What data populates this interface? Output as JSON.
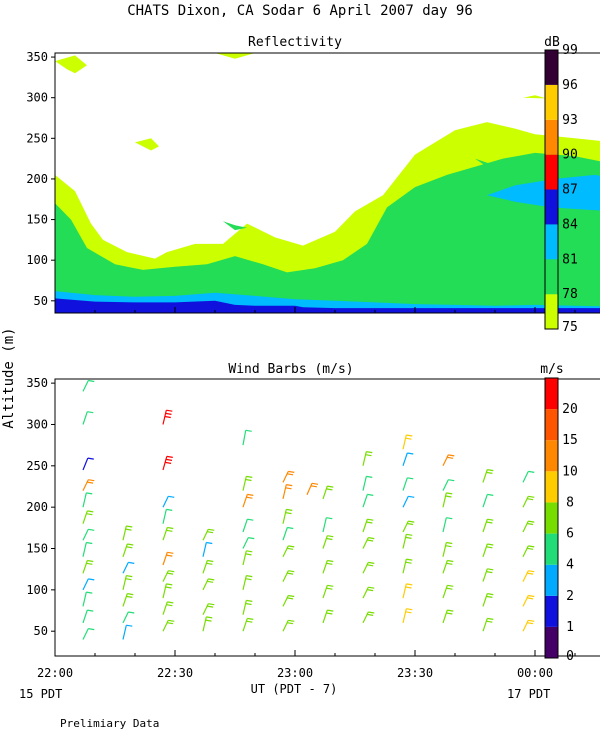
{
  "title": "CHATS Dixon, CA  Sodar    6 April 2007   day  96",
  "footnote": "Prelimiary Data",
  "y_axis_label": "Altitude (m)",
  "x_axis": {
    "label": "UT  (PDT - 7)",
    "ticks": [
      "22:00",
      "22:30",
      "23:00",
      "23:30",
      "00:00"
    ],
    "left_date": "15 PDT",
    "right_date": "17 PDT"
  },
  "colors": {
    "refl": [
      "#ccff00",
      "#22dd55",
      "#00bbff",
      "#1111dd",
      "#ff0000",
      "#ff8800",
      "#ffcc00",
      "#330033"
    ],
    "wind": [
      "#440066",
      "#1111dd",
      "#00aaff",
      "#22dd77",
      "#77dd00",
      "#ffcc00",
      "#ff8800",
      "#ff5500",
      "#ff0000"
    ]
  },
  "chart_data": [
    {
      "type": "heatmap",
      "title": "Reflectivity",
      "unit_label": "dB",
      "x_range": [
        "22:00",
        "00:20"
      ],
      "ylim": [
        35,
        355
      ],
      "y_ticks": [
        50,
        100,
        150,
        200,
        250,
        300,
        350
      ],
      "colorbar_ticks": [
        75,
        78,
        81,
        84,
        87,
        90,
        93,
        96,
        99
      ],
      "bands": [
        {
          "level": 0,
          "boundary": [
            [
              0,
              205
            ],
            [
              5,
              185
            ],
            [
              9,
              145
            ],
            [
              12,
              125
            ],
            [
              18,
              110
            ],
            [
              25,
              102
            ],
            [
              28,
              110
            ],
            [
              35,
              120
            ],
            [
              42,
              120
            ],
            [
              48,
              145
            ],
            [
              55,
              128
            ],
            [
              62,
              118
            ],
            [
              70,
              135
            ],
            [
              75,
              160
            ],
            [
              82,
              180
            ],
            [
              90,
              230
            ],
            [
              100,
              260
            ],
            [
              108,
              270
            ],
            [
              115,
              262
            ],
            [
              120,
              255
            ],
            [
              130,
              250
            ],
            [
              140,
              245
            ]
          ]
        },
        {
          "level": 1,
          "boundary": [
            [
              0,
              170
            ],
            [
              4,
              150
            ],
            [
              8,
              115
            ],
            [
              15,
              95
            ],
            [
              22,
              88
            ],
            [
              30,
              92
            ],
            [
              38,
              95
            ],
            [
              45,
              105
            ],
            [
              52,
              95
            ],
            [
              58,
              85
            ],
            [
              65,
              90
            ],
            [
              72,
              100
            ],
            [
              78,
              120
            ],
            [
              83,
              165
            ],
            [
              90,
              190
            ],
            [
              98,
              205
            ],
            [
              105,
              215
            ],
            [
              112,
              225
            ],
            [
              120,
              232
            ],
            [
              130,
              228
            ],
            [
              140,
              218
            ]
          ]
        },
        {
          "level": 2,
          "boundary": [
            [
              0,
              62
            ],
            [
              10,
              57
            ],
            [
              20,
              55
            ],
            [
              30,
              56
            ],
            [
              40,
              60
            ],
            [
              50,
              56
            ],
            [
              60,
              52
            ],
            [
              70,
              50
            ],
            [
              80,
              48
            ],
            [
              90,
              46
            ],
            [
              100,
              45
            ],
            [
              110,
              44
            ],
            [
              120,
              45
            ],
            [
              130,
              44
            ],
            [
              140,
              43
            ]
          ]
        },
        {
          "level": 3,
          "boundary": [
            [
              0,
              53
            ],
            [
              10,
              49
            ],
            [
              20,
              48
            ],
            [
              30,
              48
            ],
            [
              40,
              50
            ],
            [
              45,
              45
            ],
            [
              50,
              44
            ],
            [
              60,
              44
            ],
            [
              62,
              42
            ],
            [
              70,
              41
            ],
            [
              80,
              41
            ],
            [
              90,
              41
            ],
            [
              100,
              41
            ],
            [
              110,
              41
            ],
            [
              120,
              41
            ],
            [
              130,
              41
            ],
            [
              140,
              41
            ]
          ]
        }
      ],
      "islands": [
        {
          "level": 2,
          "points": [
            [
              108,
              180
            ],
            [
              115,
              192
            ],
            [
              125,
              200
            ],
            [
              135,
              205
            ],
            [
              140,
              200
            ],
            [
              140,
              160
            ],
            [
              133,
              162
            ],
            [
              124,
              165
            ],
            [
              115,
              172
            ]
          ]
        },
        {
          "level": 3,
          "points": [
            [
              137,
              185
            ],
            [
              140,
              190
            ],
            [
              140,
              163
            ],
            [
              137,
              165
            ]
          ]
        },
        {
          "level": 1,
          "points": [
            [
              42,
              148
            ],
            [
              45,
              143
            ],
            [
              48,
              140
            ],
            [
              45,
              137
            ]
          ]
        },
        {
          "level": 1,
          "points": [
            [
              105,
              225
            ],
            [
              108,
              220
            ],
            [
              110,
              218
            ],
            [
              108,
              215
            ]
          ]
        },
        {
          "level": 0,
          "points": [
            [
              0,
              345
            ],
            [
              3,
              335
            ],
            [
              5,
              330
            ],
            [
              8,
              340
            ],
            [
              5,
              352
            ]
          ]
        },
        {
          "level": 0,
          "points": [
            [
              40,
              355
            ],
            [
              45,
              348
            ],
            [
              50,
              355
            ]
          ]
        },
        {
          "level": 0,
          "points": [
            [
              20,
              245
            ],
            [
              24,
              250
            ],
            [
              26,
              240
            ],
            [
              24,
              235
            ]
          ]
        },
        {
          "level": 0,
          "points": [
            [
              117,
              300
            ],
            [
              120,
              303
            ],
            [
              123,
              299
            ]
          ]
        }
      ]
    },
    {
      "type": "scatter",
      "title": "Wind Barbs (m/s)",
      "unit_label": "m/s",
      "x_range": [
        "22:00",
        "00:20"
      ],
      "ylim": [
        20,
        355
      ],
      "y_ticks": [
        50,
        100,
        150,
        200,
        250,
        300,
        350
      ],
      "colorbar_ticks": [
        0,
        1,
        2,
        4,
        6,
        8,
        10,
        15,
        20
      ],
      "barbs": [
        {
          "t": 7,
          "alt": 340,
          "lvl": 3
        },
        {
          "t": 7,
          "alt": 300,
          "lvl": 3
        },
        {
          "t": 7,
          "alt": 245,
          "lvl": 1
        },
        {
          "t": 7,
          "alt": 220,
          "lvl": 6
        },
        {
          "t": 7,
          "alt": 200,
          "lvl": 3
        },
        {
          "t": 7,
          "alt": 180,
          "lvl": 4
        },
        {
          "t": 7,
          "alt": 160,
          "lvl": 3
        },
        {
          "t": 7,
          "alt": 140,
          "lvl": 3
        },
        {
          "t": 7,
          "alt": 120,
          "lvl": 4
        },
        {
          "t": 7,
          "alt": 100,
          "lvl": 2
        },
        {
          "t": 7,
          "alt": 80,
          "lvl": 3
        },
        {
          "t": 7,
          "alt": 60,
          "lvl": 3
        },
        {
          "t": 7,
          "alt": 40,
          "lvl": 3
        },
        {
          "t": 17,
          "alt": 160,
          "lvl": 4
        },
        {
          "t": 17,
          "alt": 140,
          "lvl": 4
        },
        {
          "t": 17,
          "alt": 120,
          "lvl": 2
        },
        {
          "t": 17,
          "alt": 100,
          "lvl": 4
        },
        {
          "t": 17,
          "alt": 80,
          "lvl": 4
        },
        {
          "t": 17,
          "alt": 60,
          "lvl": 3
        },
        {
          "t": 17,
          "alt": 40,
          "lvl": 2
        },
        {
          "t": 27,
          "alt": 300,
          "lvl": 8
        },
        {
          "t": 27,
          "alt": 245,
          "lvl": 8
        },
        {
          "t": 27,
          "alt": 200,
          "lvl": 2
        },
        {
          "t": 27,
          "alt": 180,
          "lvl": 3
        },
        {
          "t": 27,
          "alt": 160,
          "lvl": 4
        },
        {
          "t": 27,
          "alt": 130,
          "lvl": 6
        },
        {
          "t": 27,
          "alt": 110,
          "lvl": 4
        },
        {
          "t": 27,
          "alt": 90,
          "lvl": 4
        },
        {
          "t": 27,
          "alt": 70,
          "lvl": 4
        },
        {
          "t": 27,
          "alt": 50,
          "lvl": 4
        },
        {
          "t": 37,
          "alt": 160,
          "lvl": 4
        },
        {
          "t": 37,
          "alt": 140,
          "lvl": 2
        },
        {
          "t": 37,
          "alt": 120,
          "lvl": 4
        },
        {
          "t": 37,
          "alt": 100,
          "lvl": 4
        },
        {
          "t": 37,
          "alt": 70,
          "lvl": 4
        },
        {
          "t": 37,
          "alt": 50,
          "lvl": 4
        },
        {
          "t": 47,
          "alt": 275,
          "lvl": 3
        },
        {
          "t": 47,
          "alt": 220,
          "lvl": 4
        },
        {
          "t": 47,
          "alt": 200,
          "lvl": 6
        },
        {
          "t": 47,
          "alt": 170,
          "lvl": 3
        },
        {
          "t": 47,
          "alt": 150,
          "lvl": 3
        },
        {
          "t": 47,
          "alt": 130,
          "lvl": 4
        },
        {
          "t": 47,
          "alt": 100,
          "lvl": 4
        },
        {
          "t": 47,
          "alt": 70,
          "lvl": 4
        },
        {
          "t": 47,
          "alt": 50,
          "lvl": 4
        },
        {
          "t": 57,
          "alt": 230,
          "lvl": 6
        },
        {
          "t": 57,
          "alt": 210,
          "lvl": 6
        },
        {
          "t": 57,
          "alt": 180,
          "lvl": 4
        },
        {
          "t": 57,
          "alt": 160,
          "lvl": 3
        },
        {
          "t": 57,
          "alt": 140,
          "lvl": 4
        },
        {
          "t": 57,
          "alt": 110,
          "lvl": 4
        },
        {
          "t": 57,
          "alt": 80,
          "lvl": 4
        },
        {
          "t": 57,
          "alt": 50,
          "lvl": 4
        },
        {
          "t": 63,
          "alt": 215,
          "lvl": 6
        },
        {
          "t": 67,
          "alt": 210,
          "lvl": 4
        },
        {
          "t": 67,
          "alt": 170,
          "lvl": 3
        },
        {
          "t": 67,
          "alt": 150,
          "lvl": 4
        },
        {
          "t": 67,
          "alt": 120,
          "lvl": 4
        },
        {
          "t": 67,
          "alt": 90,
          "lvl": 4
        },
        {
          "t": 67,
          "alt": 60,
          "lvl": 4
        },
        {
          "t": 77,
          "alt": 250,
          "lvl": 4
        },
        {
          "t": 77,
          "alt": 220,
          "lvl": 3
        },
        {
          "t": 77,
          "alt": 200,
          "lvl": 3
        },
        {
          "t": 77,
          "alt": 170,
          "lvl": 4
        },
        {
          "t": 77,
          "alt": 150,
          "lvl": 4
        },
        {
          "t": 77,
          "alt": 120,
          "lvl": 4
        },
        {
          "t": 77,
          "alt": 90,
          "lvl": 4
        },
        {
          "t": 77,
          "alt": 60,
          "lvl": 4
        },
        {
          "t": 87,
          "alt": 270,
          "lvl": 5
        },
        {
          "t": 87,
          "alt": 250,
          "lvl": 2
        },
        {
          "t": 87,
          "alt": 220,
          "lvl": 3
        },
        {
          "t": 87,
          "alt": 200,
          "lvl": 2
        },
        {
          "t": 87,
          "alt": 170,
          "lvl": 4
        },
        {
          "t": 87,
          "alt": 150,
          "lvl": 4
        },
        {
          "t": 87,
          "alt": 120,
          "lvl": 4
        },
        {
          "t": 87,
          "alt": 90,
          "lvl": 5
        },
        {
          "t": 87,
          "alt": 60,
          "lvl": 5
        },
        {
          "t": 97,
          "alt": 250,
          "lvl": 6
        },
        {
          "t": 97,
          "alt": 220,
          "lvl": 3
        },
        {
          "t": 97,
          "alt": 200,
          "lvl": 4
        },
        {
          "t": 97,
          "alt": 170,
          "lvl": 3
        },
        {
          "t": 97,
          "alt": 140,
          "lvl": 4
        },
        {
          "t": 97,
          "alt": 120,
          "lvl": 4
        },
        {
          "t": 97,
          "alt": 90,
          "lvl": 4
        },
        {
          "t": 97,
          "alt": 60,
          "lvl": 4
        },
        {
          "t": 107,
          "alt": 230,
          "lvl": 4
        },
        {
          "t": 107,
          "alt": 200,
          "lvl": 3
        },
        {
          "t": 107,
          "alt": 170,
          "lvl": 4
        },
        {
          "t": 107,
          "alt": 140,
          "lvl": 4
        },
        {
          "t": 107,
          "alt": 110,
          "lvl": 4
        },
        {
          "t": 107,
          "alt": 80,
          "lvl": 4
        },
        {
          "t": 107,
          "alt": 50,
          "lvl": 4
        },
        {
          "t": 117,
          "alt": 230,
          "lvl": 3
        },
        {
          "t": 117,
          "alt": 200,
          "lvl": 4
        },
        {
          "t": 117,
          "alt": 170,
          "lvl": 4
        },
        {
          "t": 117,
          "alt": 140,
          "lvl": 4
        },
        {
          "t": 117,
          "alt": 110,
          "lvl": 5
        },
        {
          "t": 117,
          "alt": 80,
          "lvl": 5
        },
        {
          "t": 117,
          "alt": 50,
          "lvl": 5
        }
      ]
    }
  ]
}
